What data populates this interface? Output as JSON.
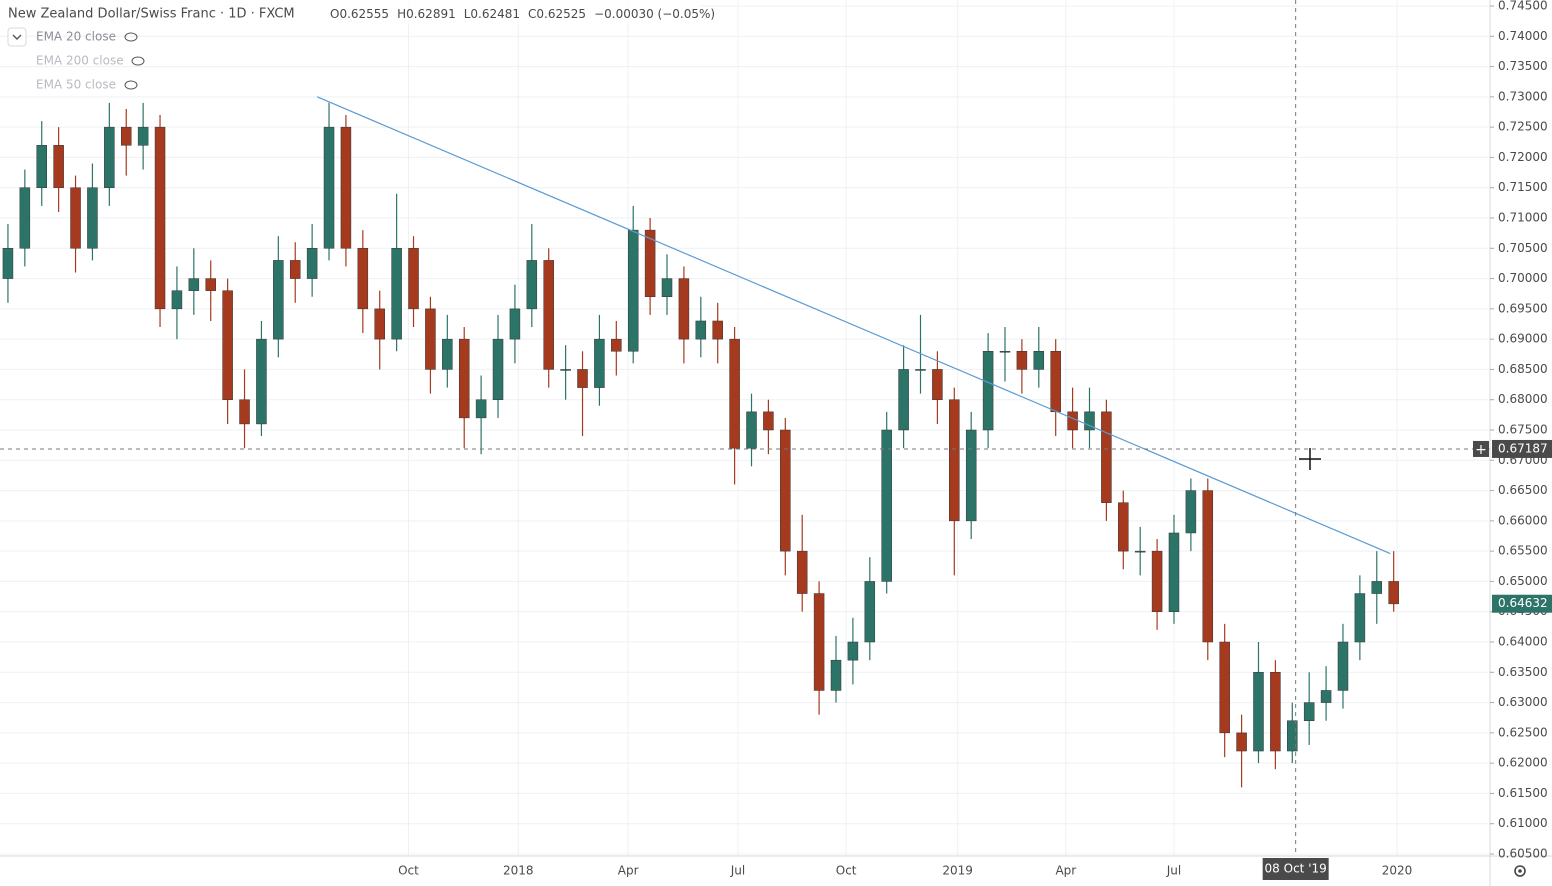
{
  "chart_data": {
    "type": "candlestick",
    "title": "New Zealand Dollar/Swiss Franc · 1D · FXCM",
    "header_values": [
      "O0.62555",
      "H0.62891",
      "L0.62481",
      "C0.62525",
      "−0.00030 (−0.05%)"
    ],
    "indicators": [
      "EMA 20 close",
      "EMA 200 close",
      "EMA 50 close"
    ],
    "up_color": "#2d7468",
    "down_color": "#a63a1f",
    "grid": true,
    "xlim": [
      -0.47,
      87.7
    ],
    "xticks": [
      {
        "value": 23.7,
        "label": "Oct"
      },
      {
        "value": 30.2,
        "label": "2018"
      },
      {
        "value": 36.7,
        "label": "Apr"
      },
      {
        "value": 43.2,
        "label": "Jul"
      },
      {
        "value": 49.6,
        "label": "Oct"
      },
      {
        "value": 56.2,
        "label": "2019"
      },
      {
        "value": 62.6,
        "label": "Apr"
      },
      {
        "value": 69.0,
        "label": "Jul"
      },
      {
        "value": 82.2,
        "label": "2020"
      }
    ],
    "ylim": [
      0.605,
      0.745
    ],
    "yticks": [
      {
        "value": 0.745,
        "label": "0.74500"
      },
      {
        "value": 0.74,
        "label": "0.74000"
      },
      {
        "value": 0.735,
        "label": "0.73500"
      },
      {
        "value": 0.73,
        "label": "0.73000"
      },
      {
        "value": 0.725,
        "label": "0.72500"
      },
      {
        "value": 0.72,
        "label": "0.72000"
      },
      {
        "value": 0.715,
        "label": "0.71500"
      },
      {
        "value": 0.71,
        "label": "0.71000"
      },
      {
        "value": 0.705,
        "label": "0.70500"
      },
      {
        "value": 0.7,
        "label": "0.70000"
      },
      {
        "value": 0.695,
        "label": "0.69500"
      },
      {
        "value": 0.69,
        "label": "0.69000"
      },
      {
        "value": 0.685,
        "label": "0.68500"
      },
      {
        "value": 0.68,
        "label": "0.68000"
      },
      {
        "value": 0.675,
        "label": "0.67500"
      },
      {
        "value": 0.67,
        "label": "0.67000"
      },
      {
        "value": 0.665,
        "label": "0.66500"
      },
      {
        "value": 0.66,
        "label": "0.66000"
      },
      {
        "value": 0.655,
        "label": "0.65500"
      },
      {
        "value": 0.65,
        "label": "0.65000"
      },
      {
        "value": 0.645,
        "label": "0.64500"
      },
      {
        "value": 0.64,
        "label": "0.64000"
      },
      {
        "value": 0.635,
        "label": "0.63500"
      },
      {
        "value": 0.63,
        "label": "0.63000"
      },
      {
        "value": 0.625,
        "label": "0.62500"
      },
      {
        "value": 0.62,
        "label": "0.62000"
      },
      {
        "value": 0.615,
        "label": "0.61500"
      },
      {
        "value": 0.61,
        "label": "0.61000"
      },
      {
        "value": 0.605,
        "label": "0.60500"
      }
    ],
    "crosshair": {
      "x": 76.2,
      "x_label": "08 Oct '19",
      "y": 0.67187
    },
    "last_price": 0.64632,
    "trendline": {
      "x": [
        18.3,
        81.8
      ],
      "y": [
        0.73,
        0.6546
      ],
      "color": "#5b9bd5"
    },
    "ohlc": [
      [
        0.7,
        0.709,
        0.696,
        0.705
      ],
      [
        0.705,
        0.718,
        0.702,
        0.715
      ],
      [
        0.715,
        0.726,
        0.712,
        0.722
      ],
      [
        0.722,
        0.725,
        0.711,
        0.715
      ],
      [
        0.715,
        0.717,
        0.701,
        0.705
      ],
      [
        0.705,
        0.719,
        0.703,
        0.715
      ],
      [
        0.715,
        0.729,
        0.712,
        0.725
      ],
      [
        0.725,
        0.728,
        0.717,
        0.722
      ],
      [
        0.722,
        0.729,
        0.718,
        0.725
      ],
      [
        0.725,
        0.727,
        0.692,
        0.695
      ],
      [
        0.695,
        0.702,
        0.69,
        0.698
      ],
      [
        0.698,
        0.705,
        0.694,
        0.7
      ],
      [
        0.7,
        0.703,
        0.693,
        0.698
      ],
      [
        0.698,
        0.7,
        0.676,
        0.68
      ],
      [
        0.68,
        0.685,
        0.672,
        0.676
      ],
      [
        0.676,
        0.693,
        0.674,
        0.69
      ],
      [
        0.69,
        0.707,
        0.687,
        0.703
      ],
      [
        0.703,
        0.706,
        0.696,
        0.7
      ],
      [
        0.7,
        0.709,
        0.697,
        0.705
      ],
      [
        0.705,
        0.729,
        0.703,
        0.725
      ],
      [
        0.725,
        0.727,
        0.702,
        0.705
      ],
      [
        0.705,
        0.708,
        0.691,
        0.695
      ],
      [
        0.695,
        0.698,
        0.685,
        0.69
      ],
      [
        0.69,
        0.714,
        0.688,
        0.705
      ],
      [
        0.705,
        0.707,
        0.692,
        0.695
      ],
      [
        0.695,
        0.697,
        0.681,
        0.685
      ],
      [
        0.685,
        0.694,
        0.682,
        0.69
      ],
      [
        0.69,
        0.692,
        0.672,
        0.677
      ],
      [
        0.677,
        0.684,
        0.671,
        0.68
      ],
      [
        0.68,
        0.694,
        0.677,
        0.69
      ],
      [
        0.69,
        0.699,
        0.686,
        0.695
      ],
      [
        0.695,
        0.709,
        0.692,
        0.703
      ],
      [
        0.703,
        0.705,
        0.682,
        0.685
      ],
      [
        0.685,
        0.689,
        0.68,
        0.685
      ],
      [
        0.685,
        0.688,
        0.674,
        0.682
      ],
      [
        0.682,
        0.694,
        0.679,
        0.69
      ],
      [
        0.69,
        0.693,
        0.684,
        0.688
      ],
      [
        0.688,
        0.712,
        0.686,
        0.708
      ],
      [
        0.708,
        0.71,
        0.694,
        0.697
      ],
      [
        0.697,
        0.704,
        0.694,
        0.7
      ],
      [
        0.7,
        0.702,
        0.686,
        0.69
      ],
      [
        0.69,
        0.697,
        0.687,
        0.693
      ],
      [
        0.693,
        0.696,
        0.686,
        0.69
      ],
      [
        0.69,
        0.692,
        0.666,
        0.672
      ],
      [
        0.672,
        0.681,
        0.669,
        0.678
      ],
      [
        0.678,
        0.68,
        0.671,
        0.675
      ],
      [
        0.675,
        0.677,
        0.651,
        0.655
      ],
      [
        0.655,
        0.661,
        0.645,
        0.648
      ],
      [
        0.648,
        0.65,
        0.628,
        0.632
      ],
      [
        0.632,
        0.641,
        0.63,
        0.637
      ],
      [
        0.637,
        0.644,
        0.633,
        0.64
      ],
      [
        0.64,
        0.654,
        0.637,
        0.65
      ],
      [
        0.65,
        0.678,
        0.648,
        0.675
      ],
      [
        0.675,
        0.689,
        0.672,
        0.685
      ],
      [
        0.685,
        0.694,
        0.681,
        0.685
      ],
      [
        0.685,
        0.688,
        0.676,
        0.68
      ],
      [
        0.68,
        0.682,
        0.651,
        0.66
      ],
      [
        0.66,
        0.678,
        0.657,
        0.675
      ],
      [
        0.675,
        0.691,
        0.672,
        0.688
      ],
      [
        0.688,
        0.692,
        0.683,
        0.688
      ],
      [
        0.688,
        0.69,
        0.681,
        0.685
      ],
      [
        0.685,
        0.692,
        0.682,
        0.688
      ],
      [
        0.688,
        0.69,
        0.674,
        0.678
      ],
      [
        0.678,
        0.682,
        0.672,
        0.675
      ],
      [
        0.675,
        0.682,
        0.672,
        0.678
      ],
      [
        0.678,
        0.68,
        0.66,
        0.663
      ],
      [
        0.663,
        0.665,
        0.652,
        0.655
      ],
      [
        0.655,
        0.659,
        0.651,
        0.655
      ],
      [
        0.655,
        0.657,
        0.642,
        0.645
      ],
      [
        0.645,
        0.661,
        0.643,
        0.658
      ],
      [
        0.658,
        0.667,
        0.655,
        0.665
      ],
      [
        0.665,
        0.667,
        0.637,
        0.64
      ],
      [
        0.64,
        0.643,
        0.621,
        0.625
      ],
      [
        0.625,
        0.628,
        0.616,
        0.622
      ],
      [
        0.622,
        0.64,
        0.62,
        0.635
      ],
      [
        0.635,
        0.637,
        0.619,
        0.622
      ],
      [
        0.622,
        0.63,
        0.62,
        0.627
      ],
      [
        0.627,
        0.635,
        0.623,
        0.63
      ],
      [
        0.63,
        0.636,
        0.627,
        0.632
      ],
      [
        0.632,
        0.643,
        0.629,
        0.64
      ],
      [
        0.64,
        0.651,
        0.637,
        0.648
      ],
      [
        0.648,
        0.655,
        0.643,
        0.65
      ],
      [
        0.65,
        0.655,
        0.645,
        0.6463
      ]
    ]
  }
}
